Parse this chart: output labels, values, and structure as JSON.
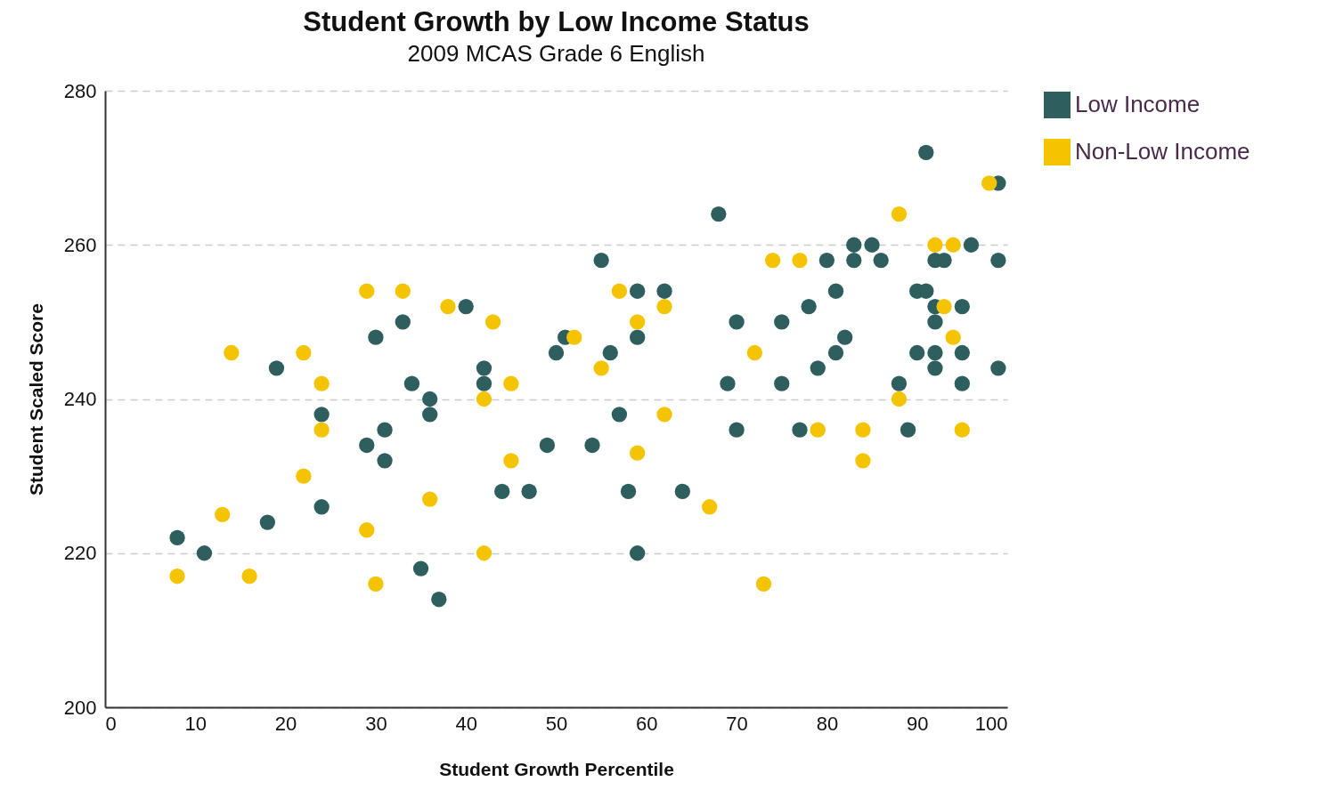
{
  "chart_data": {
    "type": "scatter",
    "title": "Student Growth by Low Income Status",
    "subtitle": "2009 MCAS Grade 6 English",
    "xlabel": "Student Growth Percentile",
    "ylabel": "Student Scaled Score",
    "xlim": [
      0,
      100
    ],
    "xticks": [
      0,
      10,
      20,
      30,
      40,
      50,
      60,
      70,
      80,
      90,
      100
    ],
    "ylim": [
      200,
      280
    ],
    "yticks": [
      200,
      220,
      240,
      260,
      280
    ],
    "grid": "y",
    "legend": "right",
    "marker": "circle",
    "series": [
      {
        "name": "Low Income",
        "color": "#2e5e5e",
        "x": [
          8,
          11,
          18,
          19,
          24,
          24,
          29,
          30,
          31,
          31,
          33,
          34,
          35,
          36,
          36,
          37,
          40,
          42,
          42,
          44,
          47,
          49,
          50,
          51,
          54,
          55,
          56,
          57,
          58,
          59,
          59,
          59,
          62,
          64,
          68,
          69,
          70,
          70,
          75,
          75,
          77,
          78,
          79,
          80,
          81,
          81,
          82,
          83,
          83,
          85,
          86,
          88,
          89,
          90,
          90,
          91,
          91,
          92,
          92,
          92,
          92,
          92,
          93,
          95,
          95,
          95,
          96,
          99,
          99,
          99
        ],
        "values": [
          222,
          220,
          224,
          244,
          238,
          226,
          234,
          248,
          236,
          232,
          250,
          242,
          218,
          240,
          238,
          214,
          252,
          244,
          242,
          228,
          228,
          234,
          246,
          248,
          234,
          258,
          246,
          238,
          228,
          254,
          248,
          220,
          254,
          228,
          264,
          242,
          250,
          236,
          242,
          250,
          236,
          252,
          244,
          258,
          254,
          246,
          248,
          260,
          258,
          260,
          258,
          242,
          236,
          254,
          246,
          272,
          254,
          258,
          252,
          250,
          246,
          244,
          258,
          252,
          246,
          242,
          260,
          268,
          258,
          244
        ]
      },
      {
        "name": "Non-Low Income",
        "color": "#f5c400",
        "x": [
          8,
          13,
          14,
          16,
          22,
          22,
          24,
          24,
          29,
          29,
          30,
          33,
          36,
          38,
          42,
          42,
          43,
          45,
          45,
          52,
          55,
          57,
          59,
          59,
          62,
          62,
          67,
          72,
          73,
          74,
          77,
          79,
          84,
          84,
          88,
          88,
          92,
          93,
          94,
          94,
          95,
          98
        ],
        "values": [
          217,
          225,
          246,
          217,
          246,
          230,
          242,
          236,
          254,
          223,
          216,
          254,
          227,
          252,
          240,
          220,
          250,
          242,
          232,
          248,
          244,
          254,
          250,
          233,
          252,
          238,
          226,
          246,
          216,
          258,
          258,
          236,
          236,
          232,
          264,
          240,
          260,
          252,
          260,
          248,
          236,
          268
        ]
      }
    ]
  }
}
